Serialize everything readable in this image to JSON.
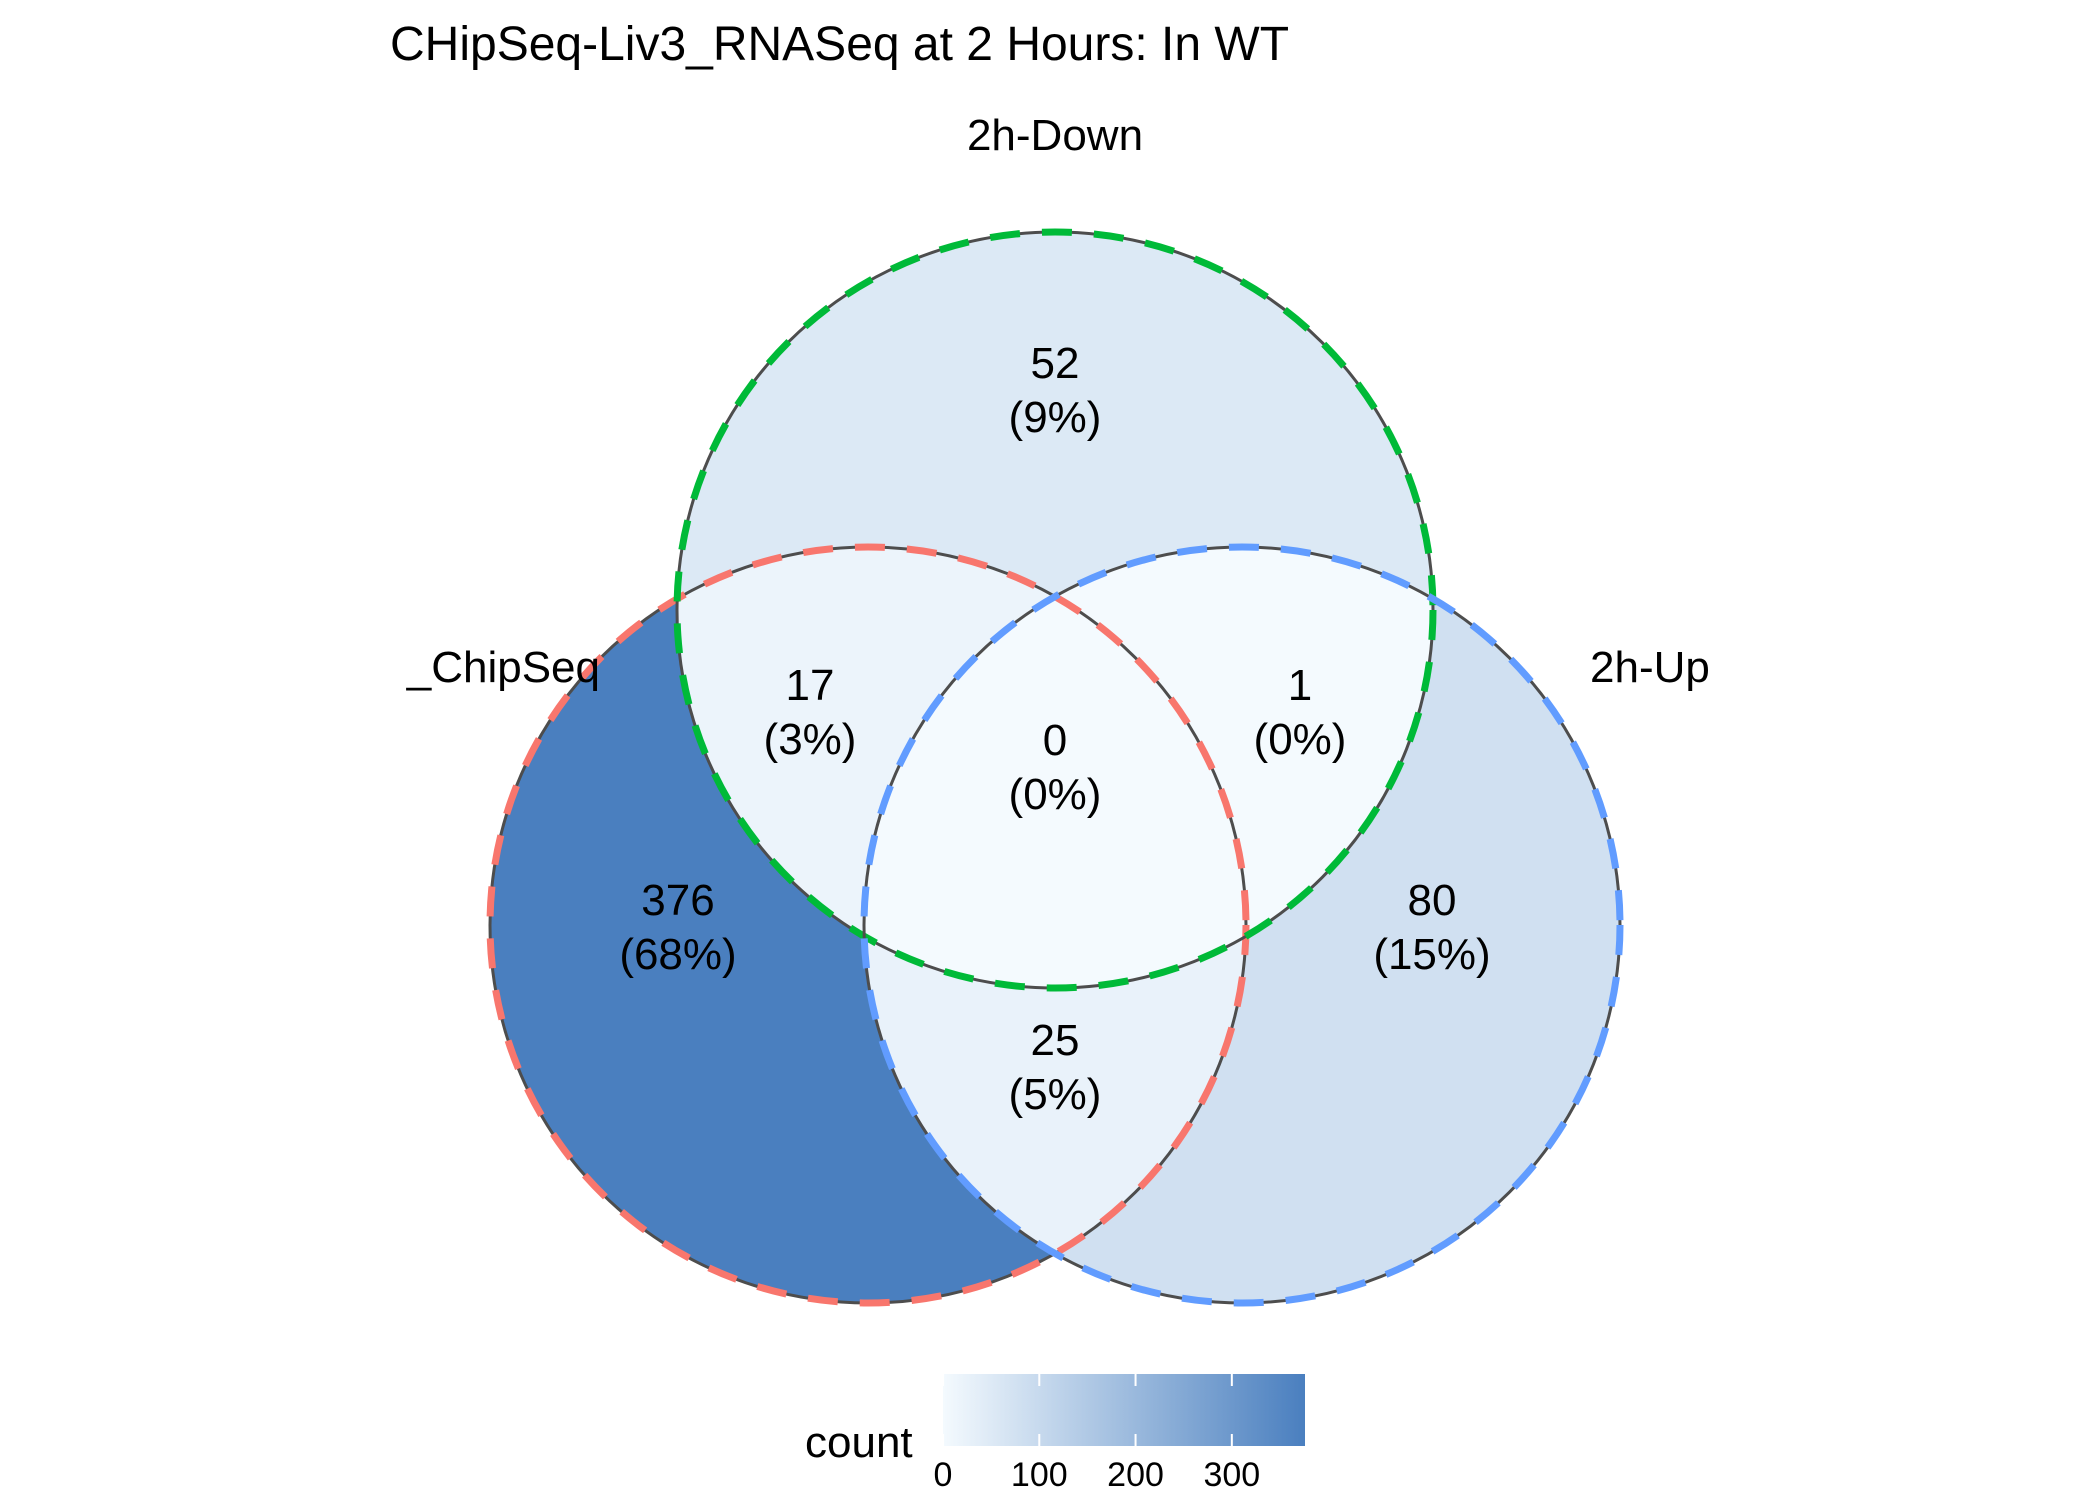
{
  "chart_data": {
    "type": "venn",
    "title": "CHipSeq-Liv3_RNASeq at 2 Hours: In WT",
    "sets": [
      {
        "id": "A",
        "label": "_ChipSeq",
        "outline_color": "#F8766D"
      },
      {
        "id": "B",
        "label": "2h-Down",
        "outline_color": "#00BA38"
      },
      {
        "id": "C",
        "label": "2h-Up",
        "outline_color": "#619CFF"
      }
    ],
    "regions": [
      {
        "sets": [
          "A"
        ],
        "count": 376,
        "percent": "(68%)"
      },
      {
        "sets": [
          "B"
        ],
        "count": 52,
        "percent": "(9%)"
      },
      {
        "sets": [
          "C"
        ],
        "count": 80,
        "percent": "(15%)"
      },
      {
        "sets": [
          "A",
          "B"
        ],
        "count": 17,
        "percent": "(3%)"
      },
      {
        "sets": [
          "B",
          "C"
        ],
        "count": 1,
        "percent": "(0%)"
      },
      {
        "sets": [
          "A",
          "C"
        ],
        "count": 25,
        "percent": "(5%)"
      },
      {
        "sets": [
          "A",
          "B",
          "C"
        ],
        "count": 0,
        "percent": "(0%)"
      }
    ],
    "legend": {
      "title": "count",
      "position": "bottom",
      "ticks": [
        "0",
        "100",
        "200",
        "300"
      ],
      "tick_values": [
        0,
        100,
        200,
        300
      ],
      "range": [
        0,
        376
      ],
      "low_color": "#F4FAFE",
      "high_color": "#4A7FBF"
    }
  }
}
